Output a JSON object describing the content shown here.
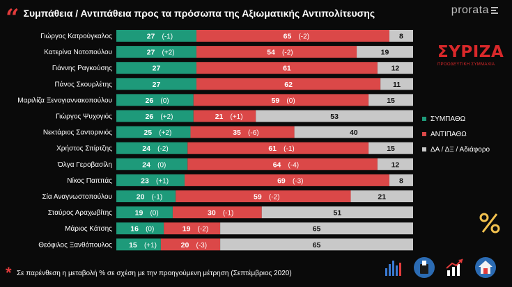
{
  "header": {
    "title": "Συμπάθεια / Αντιπάθεια προς τα πρόσωπα της Αξιωματικής Αντιπολίτευσης",
    "brand": "prorata"
  },
  "party": {
    "name": "ΣΥΡΙΖΑ",
    "subtitle": "ΠΡΟΟΔΕΥΤΙΚΗ ΣΥΜΜΑΧΙΑ"
  },
  "footnote": "Σε παρένθεση η μεταβολή % σε σχέση με την προηγούμενη μέτρηση (Σεπτέμβριος 2020)",
  "colors": {
    "sympathy": "#1e9a7a",
    "antipathy": "#db4848",
    "other": "#c8c8c8",
    "background": "#0a0a0a"
  },
  "icons": [
    "bar-chart-icon",
    "ballot-box-icon",
    "trend-chart-icon",
    "house-icon",
    "percent-icon"
  ],
  "chart_data": {
    "type": "bar",
    "orientation": "horizontal",
    "stacked": true,
    "xlim": [
      0,
      100
    ],
    "grid": false,
    "legend_position": "right",
    "categories": [
      "Γιώργος Κατρούγκαλος",
      "Κατερίνα Νοτοπούλου",
      "Γιάννης Ραγκούσης",
      "Πάνος Σκουρλέτης",
      "Μαριλίζα Ξενογιαννακοπούλου",
      "Γιώργος Ψυχογιός",
      "Νεκτάριος Σαντορινιός",
      "Χρήστος Σπίρτζης",
      "Όλγα Γεροβασίλη",
      "Νίκος Παππάς",
      "Σία Αναγνωστοπούλου",
      "Σταύρος Αραχωβίτης",
      "Μάριος Κάτσης",
      "Θεόφιλος Ξανθόπουλος"
    ],
    "series": [
      {
        "name": "ΣΥΜΠΑΘΩ",
        "color": "#1e9a7a",
        "values": [
          27,
          27,
          27,
          27,
          26,
          26,
          25,
          24,
          24,
          23,
          20,
          19,
          16,
          15
        ],
        "changes": [
          "(-1)",
          "(+2)",
          "",
          "",
          "(0)",
          "(+2)",
          "(+2)",
          "(-2)",
          "(0)",
          "(+1)",
          "(-1)",
          "(0)",
          "(0)",
          "(+1)"
        ]
      },
      {
        "name": "ΑΝΤΙΠΑΘΩ",
        "color": "#db4848",
        "values": [
          65,
          54,
          61,
          62,
          59,
          21,
          35,
          61,
          64,
          69,
          59,
          30,
          19,
          20
        ],
        "changes": [
          "(-2)",
          "(-2)",
          "",
          "",
          "(0)",
          "(+1)",
          "(-6)",
          "(-1)",
          "(-4)",
          "(-3)",
          "(-2)",
          "(-1)",
          "(-2)",
          "(-3)"
        ]
      },
      {
        "name": "ΔΑ / ΔΞ / Αδιάφορο",
        "color": "#c8c8c8",
        "values": [
          8,
          19,
          12,
          11,
          15,
          53,
          40,
          15,
          12,
          8,
          21,
          51,
          65,
          65
        ],
        "changes": [
          "",
          "",
          "",
          "",
          "",
          "",
          "",
          "",
          "",
          "",
          "",
          "",
          "",
          ""
        ]
      }
    ]
  }
}
